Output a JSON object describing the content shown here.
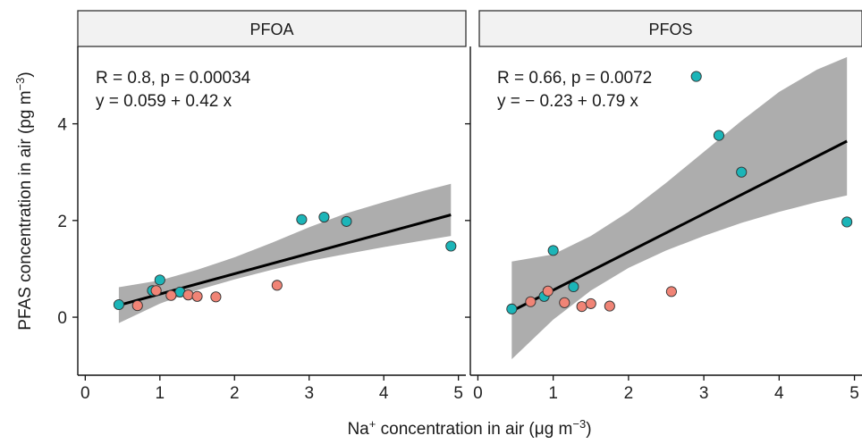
{
  "chart_data": [
    {
      "type": "scatter",
      "facet": "PFOA",
      "annotation": {
        "stats": "R = 0.8, p = 0.00034",
        "equation": "y = 0.059 + 0.42 x"
      },
      "xlim": [
        -0.1,
        5.1
      ],
      "ylim": [
        -1.2,
        5.6
      ],
      "x_ticks": [
        0,
        1,
        2,
        3,
        4,
        5
      ],
      "y_ticks": [
        0,
        2,
        4
      ],
      "fit": {
        "intercept": 0.059,
        "slope": 0.42,
        "x_range": [
          0.45,
          4.9
        ]
      },
      "band": [
        {
          "x": 0.45,
          "lo": -0.12,
          "hi": 0.62
        },
        {
          "x": 1.0,
          "lo": 0.28,
          "hi": 0.76
        },
        {
          "x": 1.5,
          "lo": 0.56,
          "hi": 0.98
        },
        {
          "x": 2.0,
          "lo": 0.78,
          "hi": 1.24
        },
        {
          "x": 2.5,
          "lo": 0.98,
          "hi": 1.54
        },
        {
          "x": 3.0,
          "lo": 1.16,
          "hi": 1.86
        },
        {
          "x": 3.5,
          "lo": 1.31,
          "hi": 2.15
        },
        {
          "x": 4.0,
          "lo": 1.45,
          "hi": 2.38
        },
        {
          "x": 4.5,
          "lo": 1.58,
          "hi": 2.6
        },
        {
          "x": 4.9,
          "lo": 1.68,
          "hi": 2.76
        }
      ],
      "series": [
        {
          "color": "#1cb5b8",
          "points": [
            [
              0.45,
              0.26
            ],
            [
              0.9,
              0.55
            ],
            [
              1.0,
              0.77
            ],
            [
              1.27,
              0.52
            ],
            [
              2.9,
              2.02
            ],
            [
              3.2,
              2.07
            ],
            [
              3.5,
              1.98
            ],
            [
              4.9,
              1.47
            ]
          ]
        },
        {
          "color": "#f08476",
          "points": [
            [
              0.7,
              0.24
            ],
            [
              0.95,
              0.55
            ],
            [
              1.15,
              0.45
            ],
            [
              1.38,
              0.46
            ],
            [
              1.5,
              0.43
            ],
            [
              1.75,
              0.42
            ],
            [
              2.57,
              0.66
            ]
          ]
        }
      ]
    },
    {
      "type": "scatter",
      "facet": "PFOS",
      "annotation": {
        "stats": "R = 0.66, p = 0.0072",
        "equation": "y = − 0.23 + 0.79 x"
      },
      "xlim": [
        -0.1,
        5.1
      ],
      "ylim": [
        -1.2,
        5.6
      ],
      "x_ticks": [
        0,
        1,
        2,
        3,
        4,
        5
      ],
      "y_ticks": [
        0,
        2,
        4
      ],
      "fit": {
        "intercept": -0.23,
        "slope": 0.79,
        "x_range": [
          0.45,
          4.9
        ]
      },
      "band": [
        {
          "x": 0.45,
          "lo": -0.87,
          "hi": 1.15
        },
        {
          "x": 1.0,
          "lo": -0.05,
          "hi": 1.3
        },
        {
          "x": 1.5,
          "lo": 0.55,
          "hi": 1.68
        },
        {
          "x": 2.0,
          "lo": 1.02,
          "hi": 2.18
        },
        {
          "x": 2.5,
          "lo": 1.38,
          "hi": 2.78
        },
        {
          "x": 3.0,
          "lo": 1.68,
          "hi": 3.42
        },
        {
          "x": 3.5,
          "lo": 1.95,
          "hi": 4.06
        },
        {
          "x": 4.0,
          "lo": 2.18,
          "hi": 4.66
        },
        {
          "x": 4.5,
          "lo": 2.38,
          "hi": 5.12
        },
        {
          "x": 4.9,
          "lo": 2.52,
          "hi": 5.38
        }
      ],
      "series": [
        {
          "color": "#1cb5b8",
          "points": [
            [
              0.45,
              0.17
            ],
            [
              0.88,
              0.43
            ],
            [
              1.0,
              1.38
            ],
            [
              1.27,
              0.63
            ],
            [
              2.9,
              4.98
            ],
            [
              3.2,
              3.76
            ],
            [
              3.5,
              3.0
            ],
            [
              4.9,
              1.97
            ]
          ]
        },
        {
          "color": "#f08476",
          "points": [
            [
              0.7,
              0.32
            ],
            [
              0.93,
              0.54
            ],
            [
              1.15,
              0.3
            ],
            [
              1.38,
              0.22
            ],
            [
              1.5,
              0.28
            ],
            [
              1.75,
              0.23
            ],
            [
              2.57,
              0.53
            ]
          ]
        }
      ]
    }
  ],
  "axes": {
    "ylabel": "PFAS concentration in air (pg m",
    "ylabel_sup": "−3",
    "ylabel_end": ")",
    "xlabel_pre": "Na",
    "xlabel_sup1": "+",
    "xlabel_mid": " concentration in air (μg m",
    "xlabel_sup2": "−3",
    "xlabel_end": ")"
  },
  "colors": {
    "band": "#a9a9a9",
    "fit_line": "#000000",
    "strip_fill": "#f2f2f2",
    "point_edge": "#333333"
  }
}
